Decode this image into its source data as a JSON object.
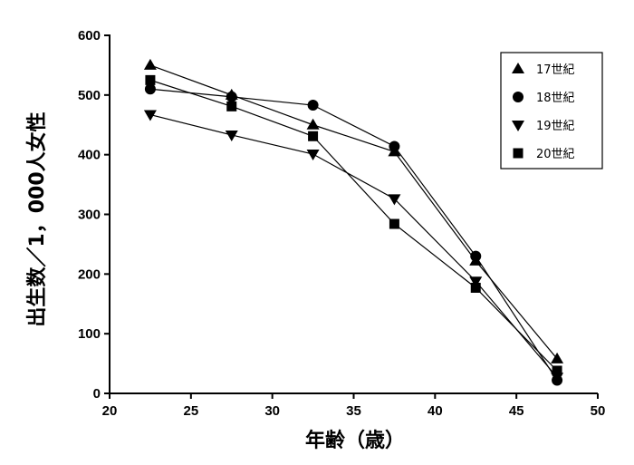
{
  "chart_data": {
    "type": "line",
    "title": "",
    "xlabel": "年齢（歳）",
    "ylabel": "出生数／1，000人女性",
    "xlim": [
      20,
      50
    ],
    "ylim": [
      0,
      600
    ],
    "xticks": [
      "20",
      "25",
      "30",
      "35",
      "40",
      "45",
      "50"
    ],
    "yticks": [
      "0",
      "100",
      "200",
      "300",
      "400",
      "500",
      "600"
    ],
    "x": [
      22.5,
      27.5,
      32.5,
      37.5,
      42.5,
      47.5
    ],
    "legend_position": "top-right",
    "grid": false,
    "series": [
      {
        "name": "17世紀",
        "marker": "triangle-up",
        "values": [
          550,
          500,
          450,
          405,
          222,
          58
        ]
      },
      {
        "name": "18世紀",
        "marker": "circle",
        "values": [
          510,
          497,
          483,
          414,
          230,
          22
        ]
      },
      {
        "name": "19世紀",
        "marker": "triangle-down",
        "values": [
          467,
          433,
          401,
          326,
          188,
          27
        ]
      },
      {
        "name": "20世紀",
        "marker": "square",
        "values": [
          525,
          481,
          431,
          284,
          177,
          38
        ]
      }
    ]
  }
}
